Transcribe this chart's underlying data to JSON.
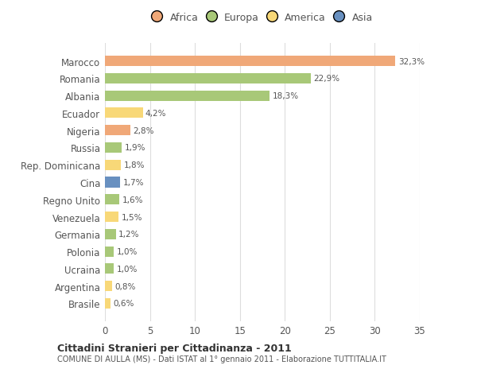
{
  "countries": [
    "Marocco",
    "Romania",
    "Albania",
    "Ecuador",
    "Nigeria",
    "Russia",
    "Rep. Dominicana",
    "Cina",
    "Regno Unito",
    "Venezuela",
    "Germania",
    "Polonia",
    "Ucraina",
    "Argentina",
    "Brasile"
  ],
  "values": [
    32.3,
    22.9,
    18.3,
    4.2,
    2.8,
    1.9,
    1.8,
    1.7,
    1.6,
    1.5,
    1.2,
    1.0,
    1.0,
    0.8,
    0.6
  ],
  "labels": [
    "32,3%",
    "22,9%",
    "18,3%",
    "4,2%",
    "2,8%",
    "1,9%",
    "1,8%",
    "1,7%",
    "1,6%",
    "1,5%",
    "1,2%",
    "1,0%",
    "1,0%",
    "0,8%",
    "0,6%"
  ],
  "colors": [
    "#F0A878",
    "#A8C878",
    "#A8C878",
    "#F8D878",
    "#F0A878",
    "#A8C878",
    "#F8D878",
    "#6890C0",
    "#A8C878",
    "#F8D878",
    "#A8C878",
    "#A8C878",
    "#A8C878",
    "#F8D878",
    "#F8D878"
  ],
  "categories": [
    "Africa",
    "Europa",
    "America",
    "Asia"
  ],
  "legend_colors": [
    "#F0A878",
    "#A8C878",
    "#F8D878",
    "#6890C0"
  ],
  "title1": "Cittadini Stranieri per Cittadinanza - 2011",
  "title2": "COMUNE DI AULLA (MS) - Dati ISTAT al 1° gennaio 2011 - Elaborazione TUTTITALIA.IT",
  "xlim": [
    0,
    35
  ],
  "xticks": [
    0,
    5,
    10,
    15,
    20,
    25,
    30,
    35
  ],
  "background_color": "#ffffff",
  "grid_color": "#dddddd"
}
